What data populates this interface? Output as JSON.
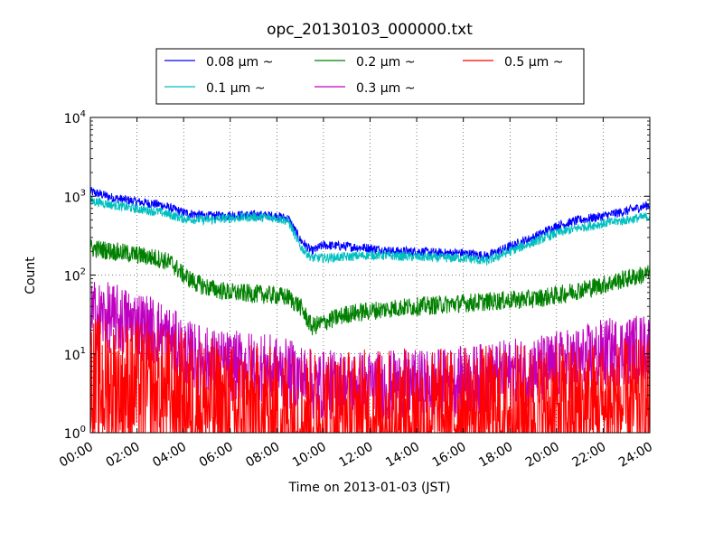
{
  "chart_data": {
    "type": "line",
    "title": "opc_20130103_000000.txt",
    "xlabel": "Time on 2013-01-03 (JST)",
    "ylabel": "Count",
    "x_ticks": [
      "00:00",
      "02:00",
      "04:00",
      "06:00",
      "08:00",
      "10:00",
      "12:00",
      "14:00",
      "16:00",
      "18:00",
      "20:00",
      "22:00",
      "24:00"
    ],
    "xlim_hours": [
      0,
      24
    ],
    "y_scale": "log",
    "ylim": [
      1,
      10000
    ],
    "y_ticks": [
      {
        "base": "10",
        "exp": "0"
      },
      {
        "base": "10",
        "exp": "1"
      },
      {
        "base": "10",
        "exp": "2"
      },
      {
        "base": "10",
        "exp": "3"
      },
      {
        "base": "10",
        "exp": "4"
      }
    ],
    "grid": true,
    "legend_position": "top-center, outside plot, 3 columns",
    "series": [
      {
        "name": "0.08 μm ~",
        "color": "#0000ff",
        "x": [
          0,
          1,
          2,
          3,
          4,
          5,
          6,
          7,
          8,
          8.5,
          9,
          9.5,
          10,
          11,
          12,
          13,
          14,
          15,
          16,
          17,
          18,
          19,
          20,
          21,
          22,
          23,
          24
        ],
        "values": [
          1150,
          950,
          850,
          780,
          620,
          560,
          570,
          580,
          560,
          520,
          280,
          200,
          240,
          230,
          220,
          200,
          200,
          190,
          190,
          175,
          230,
          300,
          420,
          500,
          560,
          650,
          780
        ],
        "noise": 0.06
      },
      {
        "name": "0.1 μm ~",
        "color": "#00bfbf",
        "x": [
          0,
          1,
          2,
          3,
          4,
          5,
          6,
          7,
          8,
          8.5,
          9,
          9.5,
          10,
          11,
          12,
          13,
          14,
          15,
          16,
          17,
          18,
          19,
          20,
          21,
          22,
          23,
          24
        ],
        "values": [
          880,
          770,
          690,
          630,
          520,
          500,
          530,
          545,
          530,
          480,
          230,
          165,
          165,
          170,
          180,
          175,
          170,
          165,
          165,
          150,
          200,
          260,
          340,
          400,
          450,
          500,
          560
        ],
        "noise": 0.06
      },
      {
        "name": "0.2 μm ~",
        "color": "#008000",
        "x": [
          0,
          1,
          2,
          3,
          3.5,
          4,
          4.5,
          5,
          6,
          7,
          8,
          8.5,
          9,
          9.5,
          10,
          11,
          12,
          13,
          14,
          15,
          16,
          17,
          18,
          19,
          20,
          21,
          22,
          23,
          24
        ],
        "values": [
          220,
          200,
          180,
          160,
          140,
          100,
          80,
          70,
          60,
          58,
          55,
          52,
          40,
          22,
          25,
          32,
          35,
          38,
          40,
          42,
          44,
          46,
          48,
          50,
          55,
          65,
          75,
          90,
          105
        ],
        "noise": 0.12
      },
      {
        "name": "0.3 μm ~",
        "color": "#bf00bf",
        "x": [
          0,
          1,
          2,
          3,
          3.5,
          4,
          5,
          6,
          7,
          8,
          9,
          9.5,
          10,
          12,
          14,
          16,
          17,
          18,
          19,
          20,
          21,
          22,
          23,
          24
        ],
        "values": [
          32,
          28,
          24,
          18,
          14,
          10,
          8,
          7,
          7,
          6,
          5,
          4,
          4,
          4,
          4,
          4.5,
          5,
          5.5,
          6,
          7,
          8,
          10,
          11,
          12
        ],
        "noise": 0.45
      },
      {
        "name": "0.5 μm ~",
        "color": "#ff0000",
        "x": [
          0,
          2,
          4,
          6,
          8,
          10,
          12,
          14,
          16,
          18,
          20,
          22,
          24
        ],
        "values": [
          4,
          3.5,
          2.5,
          1.8,
          1.6,
          1.5,
          1.5,
          1.5,
          1.6,
          1.7,
          1.8,
          2,
          2
        ],
        "noise": 0.9
      }
    ]
  }
}
